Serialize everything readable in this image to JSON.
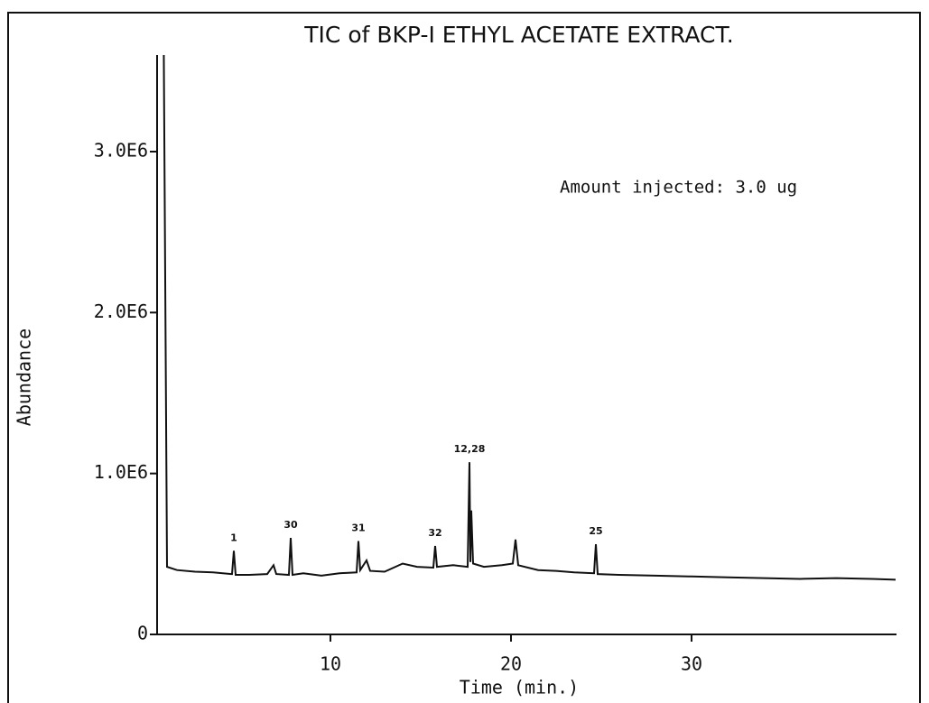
{
  "chart_data": {
    "type": "line",
    "title": "TIC of BKP-I ETHYL ACETATE EXTRACT.",
    "subtitle": "Amount injected: 3.0 ug",
    "xlabel": "Time (min.)",
    "ylabel": "Abundance",
    "color": "#111111",
    "x": [
      0.75,
      0.95,
      1.5,
      2.5,
      3.5,
      4.5,
      4.55,
      4.65,
      4.75,
      5.5,
      6.5,
      6.85,
      7.0,
      7.7,
      7.8,
      7.9,
      8.5,
      9.5,
      10.5,
      11.45,
      11.55,
      11.65,
      12.0,
      12.2,
      13.0,
      14.0,
      14.8,
      15.7,
      15.8,
      15.9,
      16.8,
      17.6,
      17.7,
      17.75,
      17.8,
      17.9,
      18.5,
      19.5,
      20.1,
      20.25,
      20.4,
      21.5,
      22.5,
      23.5,
      24.6,
      24.7,
      24.8,
      26,
      28,
      30,
      32,
      34,
      36,
      38,
      40,
      41.3
    ],
    "values": [
      4000000,
      420000,
      400000,
      390000,
      385000,
      375000,
      375000,
      520000,
      370000,
      370000,
      375000,
      430000,
      375000,
      370000,
      600000,
      370000,
      380000,
      365000,
      380000,
      385000,
      580000,
      400000,
      460000,
      395000,
      390000,
      440000,
      420000,
      415000,
      550000,
      420000,
      430000,
      420000,
      1070000,
      450000,
      770000,
      440000,
      420000,
      430000,
      440000,
      590000,
      430000,
      400000,
      395000,
      385000,
      380000,
      560000,
      375000,
      370000,
      365000,
      360000,
      355000,
      350000,
      345000,
      350000,
      345000,
      340000
    ],
    "xlim": [
      0.4,
      41.35
    ],
    "xticks": [
      10,
      20,
      30
    ],
    "ylim": [
      0,
      3600000
    ],
    "yticks": [
      0,
      {
        "value": 1000000,
        "label": "1.0E6"
      },
      {
        "value": 2000000,
        "label": "2.0E6"
      },
      {
        "value": 3000000,
        "label": "3.0E6"
      }
    ],
    "annotations": [
      {
        "text": "1",
        "x": 4.65,
        "y": 520000
      },
      {
        "text": "30",
        "x": 7.8,
        "y": 600000
      },
      {
        "text": "31",
        "x": 11.55,
        "y": 580000
      },
      {
        "text": "32",
        "x": 15.8,
        "y": 550000
      },
      {
        "text": "12,28",
        "x": 17.7,
        "y": 1070000
      },
      {
        "text": "25",
        "x": 24.7,
        "y": 560000
      }
    ]
  }
}
